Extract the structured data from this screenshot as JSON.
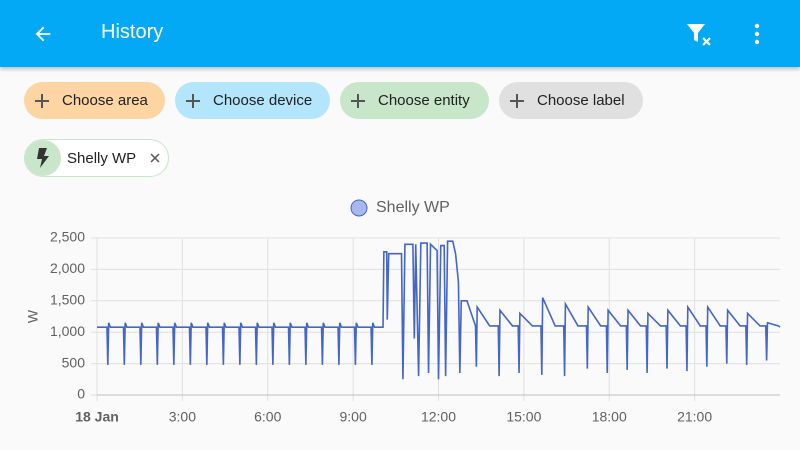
{
  "header": {
    "title": "History"
  },
  "filters": [
    "Choose area",
    "Choose device",
    "Choose entity",
    "Choose label"
  ],
  "selected": [
    "Shelly WP"
  ],
  "chart_data": {
    "type": "line",
    "y_label": "W",
    "grid": true,
    "xlim": [
      0,
      24
    ],
    "ylim": [
      0,
      2500
    ],
    "xticks": [
      {
        "value": 0,
        "label": "18 Jan"
      },
      {
        "value": 3,
        "label": "3:00"
      },
      {
        "value": 6,
        "label": "6:00"
      },
      {
        "value": 9,
        "label": "9:00"
      },
      {
        "value": 12,
        "label": "12:00"
      },
      {
        "value": 15,
        "label": "15:00"
      },
      {
        "value": 18,
        "label": "18:00"
      },
      {
        "value": 21,
        "label": "21:00"
      }
    ],
    "yticks": [
      0,
      500,
      {
        "value": 1000,
        "label": "1,000"
      },
      {
        "value": 1500,
        "label": "1,500"
      },
      {
        "value": 2000,
        "label": "2,000"
      },
      {
        "value": 2500,
        "label": "2,500"
      }
    ],
    "series": [
      {
        "name": "Shelly WP",
        "color": "#4466c8",
        "x": [
          0,
          0.35,
          0.38,
          0.41,
          0.47,
          0.93,
          0.96,
          0.99,
          1.05,
          1.51,
          1.54,
          1.57,
          1.63,
          2.09,
          2.12,
          2.15,
          2.21,
          2.67,
          2.7,
          2.73,
          2.79,
          3.25,
          3.28,
          3.31,
          3.37,
          3.83,
          3.86,
          3.89,
          3.95,
          4.41,
          4.44,
          4.47,
          4.53,
          4.99,
          5.02,
          5.05,
          5.11,
          5.57,
          5.6,
          5.63,
          5.69,
          6.15,
          6.18,
          6.21,
          6.27,
          6.73,
          6.76,
          6.79,
          6.85,
          7.31,
          7.34,
          7.37,
          7.43,
          7.89,
          7.92,
          7.95,
          8.01,
          8.47,
          8.5,
          8.53,
          8.59,
          9.05,
          9.08,
          9.11,
          9.17,
          9.63,
          9.66,
          9.69,
          9.75,
          10.05,
          10.08,
          10.18,
          10.2,
          10.25,
          10.7,
          10.75,
          10.82,
          11.1,
          11.15,
          11.2,
          11.3,
          11.38,
          11.6,
          11.65,
          11.72,
          11.95,
          12.0,
          12.08,
          12.2,
          12.25,
          12.32,
          12.5,
          12.6,
          12.7,
          12.75,
          12.8,
          13.0,
          13.3,
          13.33,
          13.36,
          13.8,
          14.1,
          14.13,
          14.16,
          14.6,
          14.8,
          14.83,
          14.86,
          15.3,
          15.6,
          15.63,
          15.66,
          16.1,
          16.4,
          16.43,
          16.46,
          16.9,
          17.2,
          17.23,
          17.26,
          17.7,
          17.9,
          17.93,
          17.96,
          18.4,
          18.6,
          18.63,
          18.66,
          19.1,
          19.3,
          19.33,
          19.36,
          19.8,
          20.0,
          20.03,
          20.06,
          20.5,
          20.7,
          20.73,
          20.76,
          21.2,
          21.4,
          21.43,
          21.46,
          21.9,
          22.1,
          22.13,
          22.16,
          22.6,
          22.8,
          22.83,
          22.86,
          23.3,
          23.5,
          23.53,
          23.56,
          23.95,
          24
        ],
        "values": [
          1080,
          1080,
          480,
          1150,
          1080,
          1080,
          480,
          1150,
          1080,
          1080,
          480,
          1150,
          1080,
          1080,
          480,
          1150,
          1080,
          1080,
          480,
          1150,
          1080,
          1080,
          480,
          1150,
          1080,
          1080,
          480,
          1150,
          1080,
          1080,
          480,
          1150,
          1080,
          1080,
          480,
          1150,
          1080,
          1080,
          480,
          1150,
          1080,
          1080,
          480,
          1150,
          1080,
          1080,
          480,
          1150,
          1080,
          1080,
          480,
          1150,
          1080,
          1080,
          480,
          1150,
          1080,
          1080,
          480,
          1150,
          1080,
          1080,
          480,
          1150,
          1080,
          1080,
          480,
          1150,
          1080,
          1080,
          2280,
          2280,
          1200,
          2250,
          2250,
          250,
          2400,
          2400,
          900,
          2400,
          300,
          2420,
          2420,
          350,
          2400,
          2300,
          250,
          2380,
          2380,
          300,
          2450,
          2450,
          2250,
          1800,
          350,
          1500,
          1500,
          1100,
          450,
          1400,
          1100,
          1100,
          300,
          1350,
          1100,
          1100,
          350,
          1300,
          1100,
          1100,
          320,
          1550,
          1100,
          1100,
          300,
          1450,
          1100,
          1100,
          420,
          1400,
          1100,
          1100,
          350,
          1350,
          1100,
          1100,
          400,
          1350,
          1100,
          1100,
          350,
          1300,
          1100,
          1100,
          420,
          1350,
          1100,
          1100,
          380,
          1400,
          1100,
          1100,
          450,
          1400,
          1100,
          1100,
          500,
          1350,
          1100,
          1100,
          480,
          1300,
          1100,
          1100,
          550,
          1150,
          1100,
          1080
        ]
      }
    ]
  }
}
